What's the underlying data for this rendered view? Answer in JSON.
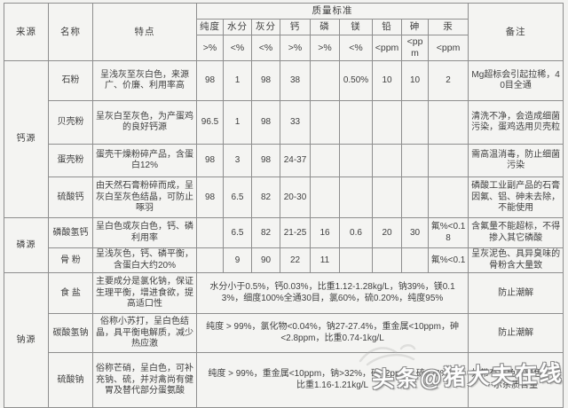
{
  "table": {
    "header": {
      "source": "来源",
      "name": "名称",
      "features": "特点",
      "quality": "质量标准",
      "remark": "备注",
      "quality_cols": [
        {
          "label": "纯度",
          "unit": ">%"
        },
        {
          "label": "水分",
          "unit": "<%"
        },
        {
          "label": "灰分",
          "unit": "<%"
        },
        {
          "label": "钙",
          "unit": ">%"
        },
        {
          "label": "磷",
          "unit": ">%"
        },
        {
          "label": "镁",
          "unit": "<%"
        },
        {
          "label": "铅",
          "unit": "<ppm"
        },
        {
          "label": "砷",
          "unit": "<ppm"
        },
        {
          "label": "汞",
          "unit": "<ppm"
        }
      ]
    },
    "groups": [
      {
        "source": "钙源",
        "rows": [
          {
            "name": "石粉",
            "features": "呈浅灰至灰白色，来源广、价廉、利用率高",
            "values": [
              "98",
              "1",
              "98",
              "38",
              "",
              "0.50%",
              "10",
              "10",
              "2"
            ],
            "remark": "Mg超标会引起拉稀，40目全通"
          },
          {
            "name": "贝壳粉",
            "features": "呈灰白至灰色，为产蛋鸡的良好钙源",
            "values": [
              "96.5",
              "1",
              "98",
              "33",
              "",
              "",
              "",
              "",
              ""
            ],
            "remark": "清洗不净，会造成细菌污染，蛋鸡选用贝壳粒"
          },
          {
            "name": "蛋壳粉",
            "features": "蛋壳干燥粉碎产品，含蛋白12%",
            "values": [
              "98",
              "3",
              "98",
              "24-37",
              "",
              "",
              "",
              "",
              ""
            ],
            "remark": "需高温消毒，防止细菌污染"
          },
          {
            "name": "硫酸钙",
            "features": "由天然石膏粉碎而成，呈灰白至灰色结晶，可防止啄羽",
            "values": [
              "98",
              "6.5",
              "82",
              "20-30",
              "",
              "",
              "",
              "",
              ""
            ],
            "remark": "磷酸工业副产品的石膏因氟、铝、砷未去除，不能使用"
          }
        ]
      },
      {
        "source": "磷源",
        "rows": [
          {
            "name": "磷酸氢钙",
            "features": "呈白色或灰白色，钙、磷利用率",
            "values": [
              "",
              "6.5",
              "82",
              "21-25",
              "16",
              "0.6",
              "20",
              "30",
              "氟%<0.18"
            ],
            "remark": "含氟量不能超标，不得掺入其它磷酸"
          },
          {
            "name": "骨 粉",
            "features": "呈浅灰色，钙、磷平衡，含蛋白大约20%",
            "values": [
              "",
              "9",
              "90",
              "22",
              "11",
              "",
              "",
              "",
              "氟%<0.1"
            ],
            "remark": "呈灰泥色、具异臭味的骨粉含大量致"
          }
        ]
      },
      {
        "source": "钠源",
        "rows": [
          {
            "name": "食 盐",
            "features": "主要成分是氯化钠，保证生理平衡，增进食欲，提高适口性",
            "merged": "水分小于0.5%，钙0.03%，比重1.12-1.28kg/L，钠39%，镁0.13%，细度100%全通30目，氯60%，硫0.20%，纯度95%",
            "remark": "防止潮解"
          },
          {
            "name": "碳酸氢钠",
            "features": "俗称小苏打，呈白色结晶，具平衡电解质，减少热应激",
            "merged": "纯度 > 99%，氯化物<0.04%，钠27-27.4%，重金属<10ppm，砷<2.8ppm，比重0.74-1kg/L",
            "remark": "防止潮解"
          },
          {
            "name": "硫酸钠",
            "features": "俗称芒硝，呈白色，可补充钠、硫，并对禽尚有健胃及替代部分蛋氨酸",
            "merged": "纯度 > 99%，重金属<10ppm，钠>32%，砷<2ppm，硫>22%，比重1.16-1.21kg/L",
            "remark": "如带有黄色或绿色，表示杂质含量"
          }
        ]
      }
    ]
  },
  "watermark": {
    "text": "头条@猪大夫在线"
  }
}
